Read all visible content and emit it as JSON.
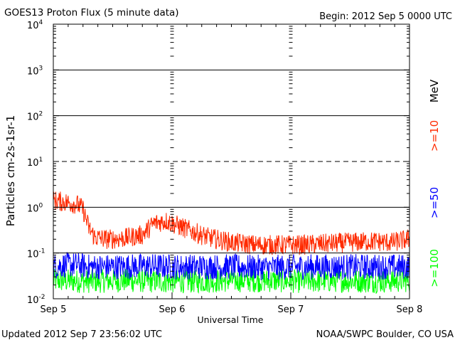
{
  "header": {
    "title": "GOES13 Proton Flux (5 minute data)",
    "begin": "Begin: 2012 Sep 5 0000 UTC"
  },
  "footer": {
    "updated": "Updated 2012 Sep  7 23:56:02 UTC",
    "credit": "NOAA/SWPC Boulder, CO USA"
  },
  "legend": {
    "unit": "MeV",
    "position": "right-vertical"
  },
  "colors": {
    "p10": "#ff2a00",
    "p50": "#0000ff",
    "p100": "#00ff00",
    "frame": "#000000"
  },
  "chart_data": {
    "type": "line",
    "title": "GOES13 Proton Flux (5 minute data)",
    "xlabel": "Universal Time",
    "ylabel": "Particles cm-2s-1sr-1",
    "yscale": "log",
    "ylim": [
      0.01,
      10000
    ],
    "xlim": [
      0,
      3
    ],
    "x_ticks": [
      {
        "x": 0,
        "label": "Sep 5"
      },
      {
        "x": 1,
        "label": "Sep 6"
      },
      {
        "x": 2,
        "label": "Sep 7"
      },
      {
        "x": 3,
        "label": "Sep 8"
      }
    ],
    "y_ticks": [
      {
        "value": 0.01,
        "base": "10",
        "exp": "-2"
      },
      {
        "value": 0.1,
        "base": "10",
        "exp": "-1"
      },
      {
        "value": 1,
        "base": "10",
        "exp": "0"
      },
      {
        "value": 10,
        "base": "10",
        "exp": "1"
      },
      {
        "value": 100,
        "base": "10",
        "exp": "2"
      },
      {
        "value": 1000,
        "base": "10",
        "exp": "3"
      },
      {
        "value": 10000,
        "base": "10",
        "exp": "4"
      }
    ],
    "reference_lines": [
      {
        "value": 1000,
        "style": "solid"
      },
      {
        "value": 100,
        "style": "solid"
      },
      {
        "value": 10,
        "style": "dashed"
      },
      {
        "value": 1,
        "style": "solid"
      },
      {
        "value": 0.1,
        "style": "solid"
      }
    ],
    "grid": false,
    "series": [
      {
        "name": ">=10",
        "color": "#ff2a00",
        "x": [
          0,
          0.1,
          0.2,
          0.25,
          0.3,
          0.35,
          0.45,
          0.6,
          0.75,
          0.85,
          0.95,
          1.1,
          1.3,
          1.5,
          1.7,
          1.9,
          2.1,
          2.3,
          2.5,
          2.7,
          2.85,
          3.0
        ],
        "values": [
          1.4,
          1.3,
          1.15,
          0.9,
          0.35,
          0.22,
          0.2,
          0.21,
          0.25,
          0.45,
          0.5,
          0.35,
          0.22,
          0.17,
          0.15,
          0.15,
          0.15,
          0.16,
          0.17,
          0.18,
          0.17,
          0.2
        ]
      },
      {
        "name": ">=50",
        "color": "#0000ff",
        "x": [
          0,
          0.1,
          0.2,
          0.3,
          0.5,
          0.8,
          1.0,
          1.2,
          1.5,
          1.8,
          2.1,
          2.4,
          2.7,
          3.0
        ],
        "values": [
          0.05,
          0.055,
          0.055,
          0.05,
          0.05,
          0.052,
          0.05,
          0.05,
          0.05,
          0.048,
          0.05,
          0.05,
          0.05,
          0.05
        ]
      },
      {
        "name": ">=100",
        "color": "#00ff00",
        "x": [
          0,
          0.3,
          0.6,
          0.9,
          1.2,
          1.5,
          1.8,
          2.1,
          2.4,
          2.7,
          3.0
        ],
        "values": [
          0.025,
          0.024,
          0.025,
          0.024,
          0.024,
          0.025,
          0.025,
          0.024,
          0.025,
          0.024,
          0.025
        ]
      }
    ]
  }
}
